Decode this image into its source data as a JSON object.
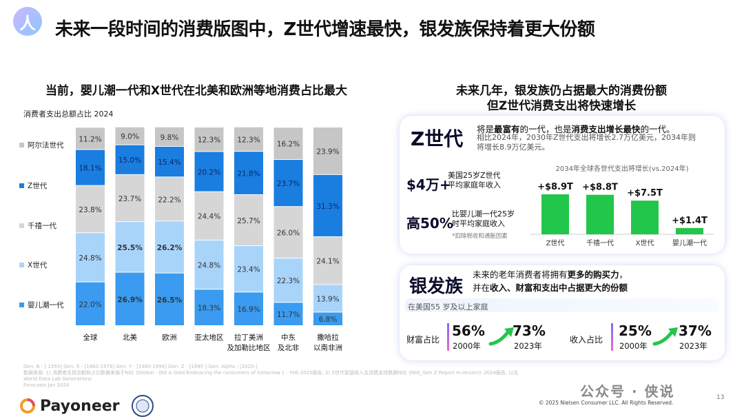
{
  "header": {
    "badge": "人",
    "title": "未来一段时间的消费版图中，Z世代增速最快，银发族保持着更大份额"
  },
  "left_panel": {
    "title": "当前，婴儿潮一代和X世代在北美和欧洲等地消费占比最大",
    "caption": "消费者支出总额占比   2024"
  },
  "chart_data": [
    {
      "type": "bar",
      "stacked": true,
      "categories": [
        "全球",
        "北美",
        "欧洲",
        "亚太地区",
        "拉丁美洲\n及加勒比地区",
        "中东\n及北非",
        "撒哈拉\n以南非洲"
      ],
      "series": [
        {
          "name": "婴儿潮一代",
          "color": "#3a9bf0",
          "values": [
            22.0,
            26.9,
            26.5,
            18.3,
            16.9,
            11.7,
            6.8
          ],
          "bold": [
            false,
            true,
            true,
            false,
            false,
            false,
            false
          ]
        },
        {
          "name": "X世代",
          "color": "#a9d4fa",
          "values": [
            24.8,
            25.5,
            26.2,
            24.8,
            23.4,
            22.3,
            13.9
          ],
          "bold": [
            false,
            true,
            true,
            false,
            false,
            false,
            false
          ]
        },
        {
          "name": "千禧一代",
          "color": "#d6d6d6",
          "values": [
            23.8,
            23.7,
            22.2,
            24.4,
            25.7,
            26.0,
            24.1
          ],
          "bold": [
            false,
            false,
            false,
            false,
            false,
            false,
            false
          ]
        },
        {
          "name": "Z世代",
          "color": "#1a7de0",
          "values": [
            18.1,
            15.0,
            15.4,
            20.2,
            21.8,
            23.7,
            31.3
          ],
          "bold": [
            false,
            false,
            false,
            false,
            false,
            false,
            false
          ]
        },
        {
          "name": "阿尔法世代",
          "color": "#c6c6c6",
          "values": [
            11.2,
            9.0,
            9.8,
            12.3,
            12.3,
            16.2,
            23.9
          ],
          "bold": [
            false,
            false,
            false,
            false,
            false,
            false,
            false
          ]
        }
      ],
      "legend_order": [
        "阿尔法世代",
        "Z世代",
        "千禧一代",
        "X世代",
        "婴儿潮一代"
      ],
      "legend_position": "left",
      "ylim": [
        0,
        100
      ]
    },
    {
      "type": "bar",
      "title": "2034年全球各世代支出将增长(vs.2024年)",
      "categories": [
        "Z世代",
        "千禧一代",
        "X世代",
        "婴儿潮一代"
      ],
      "values": [
        8.9,
        8.8,
        7.5,
        1.4
      ],
      "value_labels": [
        "+$8.9T",
        "+$8.8T",
        "+$7.5T",
        "+$1.4T"
      ],
      "color": "#22c64a",
      "ylim": [
        0,
        10
      ]
    }
  ],
  "right_panel": {
    "title_line1": "未来几年，银发族仍占据最大的消费份额",
    "title_line2": "但Z世代消费支出将快速增长"
  },
  "z_card": {
    "heading": "Z世代",
    "desc_a": "将是",
    "desc_b": "最富有",
    "desc_c": "的一代，也是",
    "desc_d": "消费支出增长最快",
    "desc_e": "的一代。",
    "sub": "相比2024年，2030年Z世代支出将增长2.7万亿美元，2034年则将增长8.9万亿美元。",
    "stat1_value": "$4万+",
    "stat1_label_1": "美国25岁Z世代",
    "stat1_label_2": "平均家庭年收入",
    "stat2_value": "高50%",
    "stat2_label_1": "比婴儿潮一代25岁",
    "stat2_label_2": "时平均家庭收入",
    "stat2_note": "*扣除税收和通胀因素"
  },
  "s_card": {
    "heading": "银发族",
    "desc1_a": "未来的老年消费者将拥有",
    "desc1_b": "更多的购买力",
    "desc1_c": "，",
    "desc2_a": "并在",
    "desc2_b": "收入、财富和支出中占据更大的份额",
    "region": "在美国55 岁及以上家庭",
    "wealth_label": "财富占比",
    "wealth_from": "56%",
    "wealth_from_year": "2000年",
    "wealth_to": "73%",
    "wealth_to_year": "2023年",
    "income_label": "收入占比",
    "income_from": "25%",
    "income_from_year": "2000年",
    "income_to": "37%",
    "income_to_year": "2023年"
  },
  "footer": {
    "note_line1": "Gen. B - [ 1959]  Gen. X - [1960-1979]  Gen. Y - [1980-1994]  Gen. Z - [1995-] Gen. Alpha - [2020-]",
    "note_line2": "数据来源: 1) 消费者支持总额和占比数据来源于NIQ《Global - Old is Gold Embracing the consumers of tomorrow 》- Feb 2025报告; 2) Z世代家庭收入及消费支持数据NIQ《NIQ_Gen Z Report H.version》2024报告, 以及 World Data Lab Generations",
    "note_line3": "Forecasts Jan 2024",
    "brand": "Payoneer",
    "copyright": "© 2025 Nielsen Consumer LLC. All Rights Reserved.",
    "watermark": "公众号 · 侠说",
    "page_number": "13"
  }
}
